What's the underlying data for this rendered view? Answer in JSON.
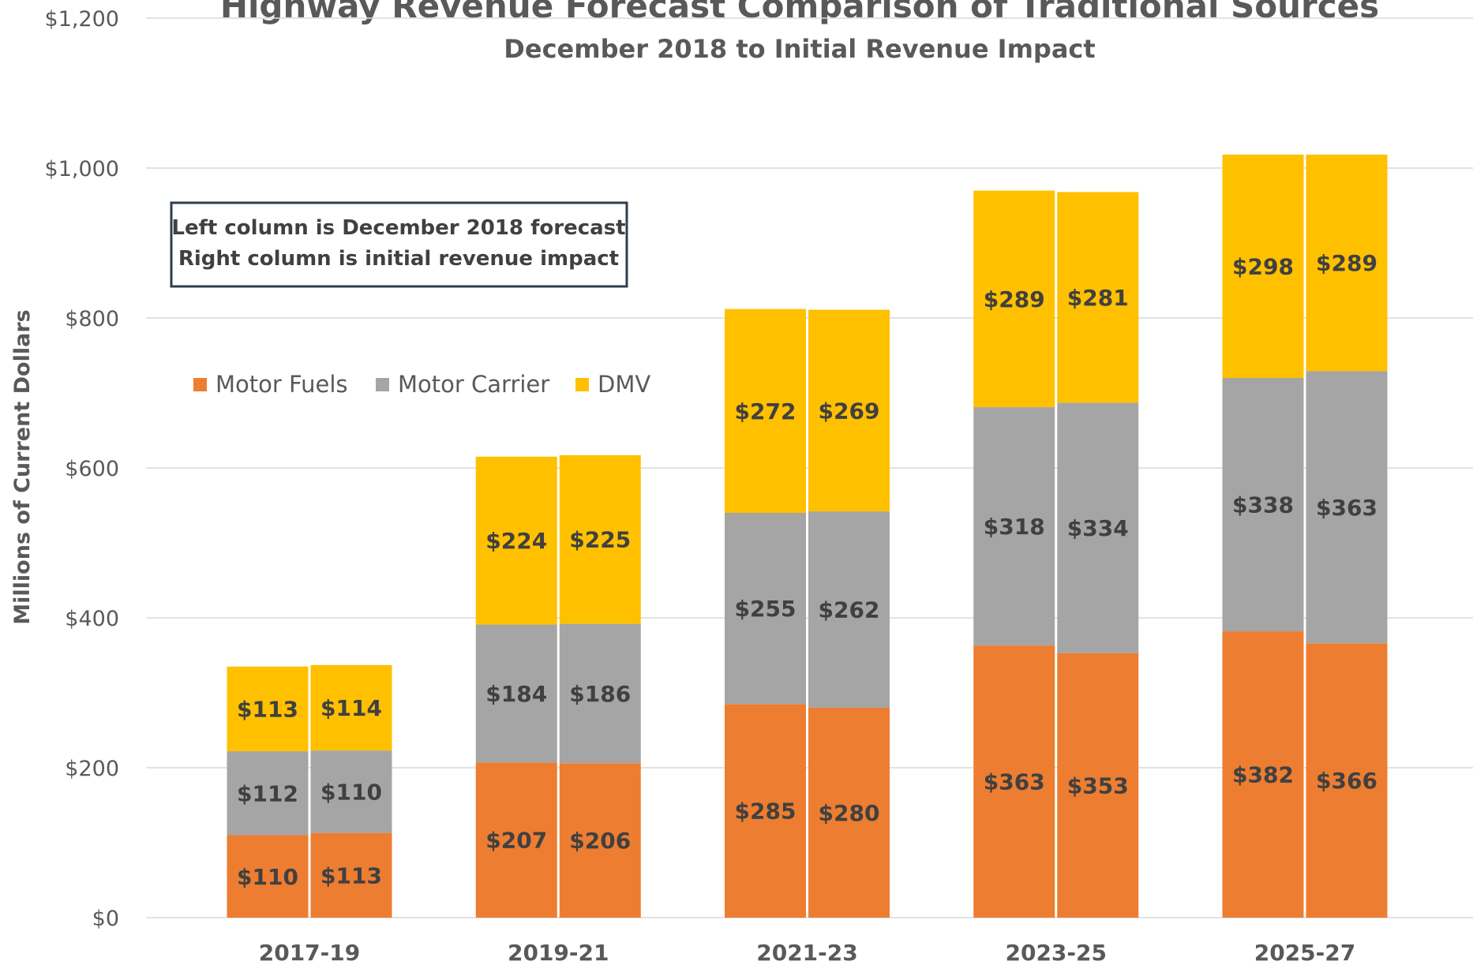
{
  "chart_data": {
    "type": "paired-stacked-bar",
    "title": "Highway Revenue Forecast Comparison of Traditional Sources",
    "subtitle": "December 2018 to Initial Revenue Impact",
    "y_label": "Millions of Current Dollars",
    "annotation": [
      "Left column is December 2018 forecast",
      "Right column is initial revenue impact"
    ],
    "categories": [
      "2017-19",
      "2019-21",
      "2021-23",
      "2023-25",
      "2025-27"
    ],
    "series": [
      {
        "name": "Motor Fuels",
        "color": "#ED7D31",
        "values": [
          [
            110,
            113
          ],
          [
            207,
            206
          ],
          [
            285,
            280
          ],
          [
            363,
            353
          ],
          [
            382,
            366
          ]
        ],
        "value_labels": [
          [
            "$110",
            "$113"
          ],
          [
            "$207",
            "$206"
          ],
          [
            "$285",
            "$280"
          ],
          [
            "$363",
            "$353"
          ],
          [
            "$382",
            "$366"
          ]
        ]
      },
      {
        "name": "Motor Carrier",
        "color": "#A5A5A5",
        "values": [
          [
            112,
            110
          ],
          [
            184,
            186
          ],
          [
            255,
            262
          ],
          [
            318,
            334
          ],
          [
            338,
            363
          ]
        ],
        "value_labels": [
          [
            "$112",
            "$110"
          ],
          [
            "$184",
            "$186"
          ],
          [
            "$255",
            "$262"
          ],
          [
            "$318",
            "$334"
          ],
          [
            "$338",
            "$363"
          ]
        ]
      },
      {
        "name": "DMV",
        "color": "#FFC000",
        "values": [
          [
            113,
            114
          ],
          [
            224,
            225
          ],
          [
            272,
            269
          ],
          [
            289,
            281
          ],
          [
            298,
            289
          ]
        ],
        "value_labels": [
          [
            "$113",
            "$114"
          ],
          [
            "$224",
            "$225"
          ],
          [
            "$272",
            "$269"
          ],
          [
            "$289",
            "$281"
          ],
          [
            "$298",
            "$289"
          ]
        ]
      }
    ],
    "ylim": [
      0,
      1200
    ],
    "yticks": [
      {
        "value": 0,
        "label": "$0"
      },
      {
        "value": 200,
        "label": "$200"
      },
      {
        "value": 400,
        "label": "$400"
      },
      {
        "value": 600,
        "label": "$600"
      },
      {
        "value": 800,
        "label": "$800"
      },
      {
        "value": 1000,
        "label": "$1,000"
      },
      {
        "value": 1200,
        "label": "$1,200"
      }
    ],
    "grid": true
  }
}
